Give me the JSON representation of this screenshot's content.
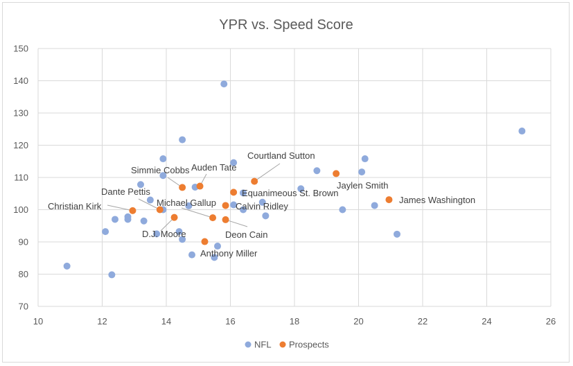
{
  "chart_data": {
    "type": "scatter",
    "title": "YPR vs. Speed Score",
    "xlabel": "",
    "ylabel": "",
    "xlim": [
      10,
      26
    ],
    "ylim": [
      70,
      150
    ],
    "xticks": [
      10,
      12,
      14,
      16,
      18,
      20,
      22,
      24,
      26
    ],
    "yticks": [
      70,
      80,
      90,
      100,
      110,
      120,
      130,
      140,
      150
    ],
    "grid": true,
    "legend": "bottom",
    "series": [
      {
        "name": "NFL",
        "color": "#8faadc",
        "points": [
          {
            "x": 10.9,
            "y": 82.5
          },
          {
            "x": 12.1,
            "y": 93.2
          },
          {
            "x": 12.3,
            "y": 79.8
          },
          {
            "x": 12.4,
            "y": 97.0
          },
          {
            "x": 12.8,
            "y": 97.8
          },
          {
            "x": 12.8,
            "y": 97.0
          },
          {
            "x": 13.2,
            "y": 107.8
          },
          {
            "x": 13.3,
            "y": 96.5
          },
          {
            "x": 13.5,
            "y": 103.0
          },
          {
            "x": 13.7,
            "y": 92.5
          },
          {
            "x": 13.9,
            "y": 115.8
          },
          {
            "x": 13.9,
            "y": 110.6
          },
          {
            "x": 13.9,
            "y": 100.0
          },
          {
            "x": 14.4,
            "y": 93.2
          },
          {
            "x": 14.5,
            "y": 121.7
          },
          {
            "x": 14.5,
            "y": 90.8
          },
          {
            "x": 14.7,
            "y": 101.2
          },
          {
            "x": 14.8,
            "y": 86.0
          },
          {
            "x": 14.9,
            "y": 107.0
          },
          {
            "x": 15.5,
            "y": 85.2
          },
          {
            "x": 15.6,
            "y": 88.7
          },
          {
            "x": 15.8,
            "y": 139.0
          },
          {
            "x": 16.1,
            "y": 114.6
          },
          {
            "x": 16.1,
            "y": 101.5
          },
          {
            "x": 16.4,
            "y": 105.2
          },
          {
            "x": 16.4,
            "y": 100.0
          },
          {
            "x": 17.0,
            "y": 102.3
          },
          {
            "x": 17.1,
            "y": 98.1
          },
          {
            "x": 18.2,
            "y": 106.5
          },
          {
            "x": 18.7,
            "y": 112.1
          },
          {
            "x": 19.5,
            "y": 100.0
          },
          {
            "x": 20.1,
            "y": 111.7
          },
          {
            "x": 20.2,
            "y": 115.8
          },
          {
            "x": 20.5,
            "y": 101.3
          },
          {
            "x": 21.2,
            "y": 92.4
          },
          {
            "x": 25.1,
            "y": 124.4
          }
        ]
      },
      {
        "name": "Prospects",
        "color": "#ed7d31",
        "points": [
          {
            "x": 12.95,
            "y": 99.7,
            "label": "Christian Kirk"
          },
          {
            "x": 13.8,
            "y": 100.0,
            "label": "Dante Pettis"
          },
          {
            "x": 14.25,
            "y": 97.6,
            "label": "D.J. Moore"
          },
          {
            "x": 14.5,
            "y": 106.9,
            "label": "Simmie Cobbs"
          },
          {
            "x": 15.05,
            "y": 107.3,
            "label": "Auden Tate"
          },
          {
            "x": 15.2,
            "y": 90.1,
            "label": "Anthony Miller"
          },
          {
            "x": 15.45,
            "y": 97.5,
            "label": "Michael Gallup"
          },
          {
            "x": 15.85,
            "y": 101.3,
            "label": "Calvin Ridley"
          },
          {
            "x": 15.85,
            "y": 96.9,
            "label": "Deon Cain"
          },
          {
            "x": 16.1,
            "y": 105.4,
            "label": "Equanimeous St. Brown"
          },
          {
            "x": 16.75,
            "y": 108.8,
            "label": "Courtland Sutton"
          },
          {
            "x": 19.3,
            "y": 111.2,
            "label": "Jaylen Smith"
          },
          {
            "x": 20.95,
            "y": 103.1,
            "label": "James Washington"
          }
        ]
      }
    ]
  }
}
